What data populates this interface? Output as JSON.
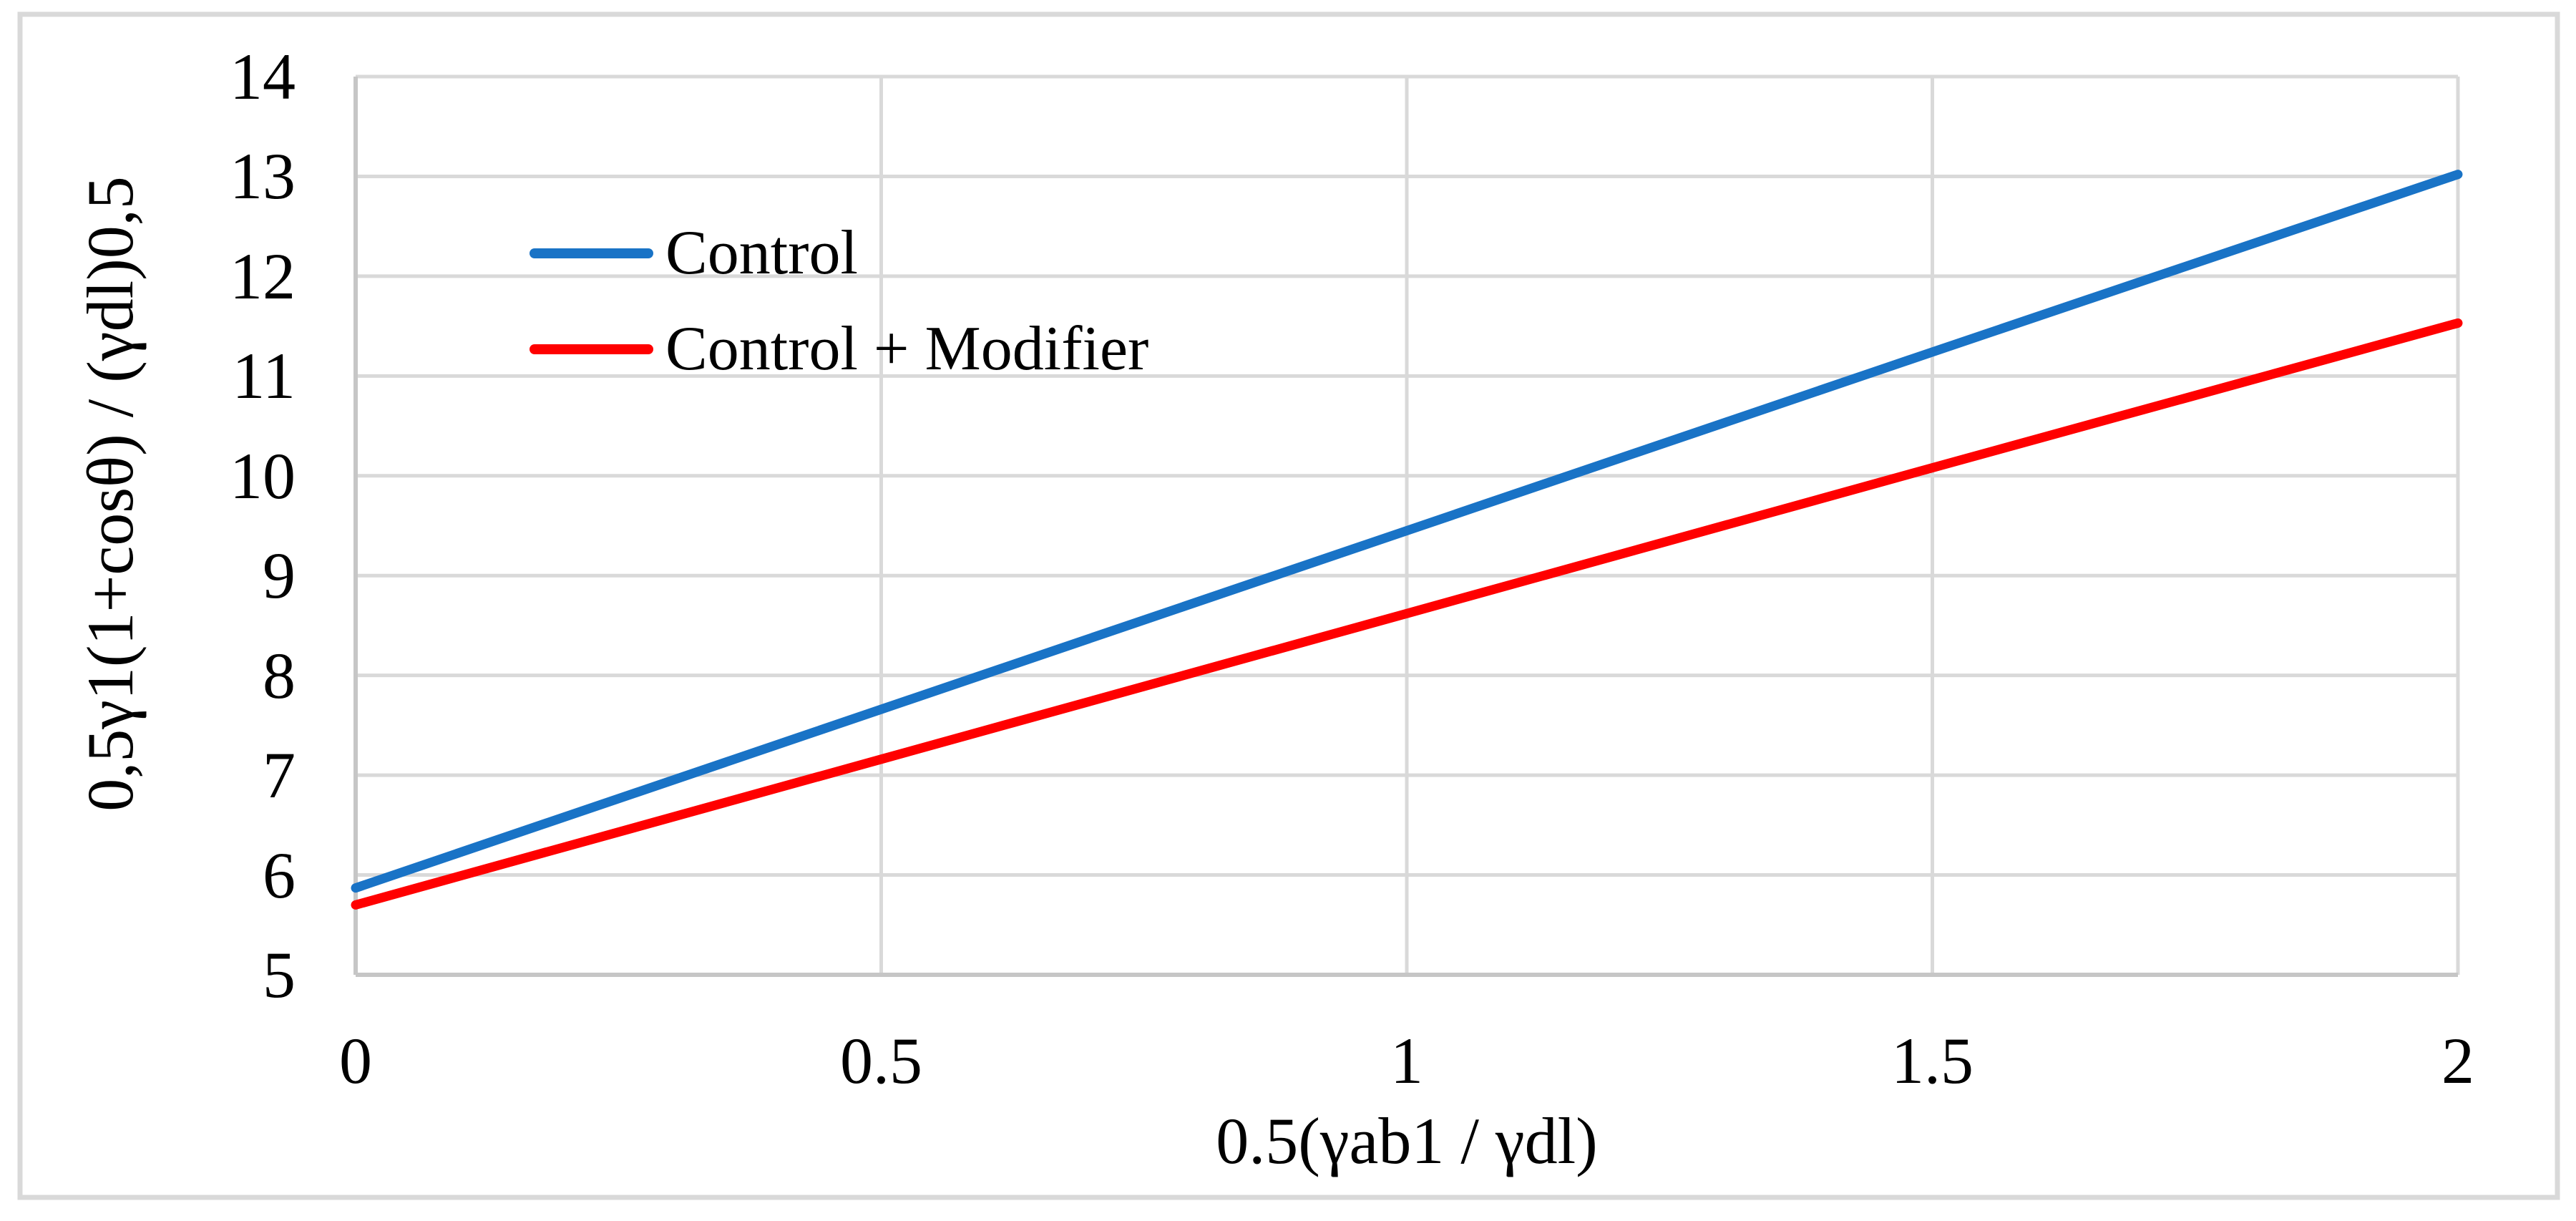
{
  "figure": {
    "background_color": "#FFFFFF",
    "border_color": "#D9D9D9"
  },
  "chart_data": {
    "type": "line",
    "title": "",
    "x": [
      0,
      0.5,
      1,
      1.5,
      2
    ],
    "series": [
      {
        "name": "Control",
        "color": "#1973C6",
        "values": [
          5.87,
          7.66,
          9.45,
          11.24,
          13.02
        ]
      },
      {
        "name": "Control + Modifier",
        "color": "#FF0000",
        "values": [
          5.7,
          7.16,
          8.62,
          10.08,
          11.53
        ]
      }
    ],
    "xlabel": "0.5(γab1 / γdl)",
    "ylabel": "0,5γ1(1+cosθ) / (γdl)0,5",
    "xlim": [
      0,
      2
    ],
    "ylim": [
      5,
      14
    ],
    "x_axis": {
      "ticks": [
        {
          "v": 0,
          "label": "0"
        },
        {
          "v": 0.5,
          "label": "0.5"
        },
        {
          "v": 1,
          "label": "1"
        },
        {
          "v": 1.5,
          "label": "1.5"
        },
        {
          "v": 2,
          "label": "2"
        }
      ]
    },
    "y_axis": {
      "ticks": [
        {
          "v": 14,
          "label": "14"
        },
        {
          "v": 13,
          "label": "13"
        },
        {
          "v": 12,
          "label": "12"
        },
        {
          "v": 11,
          "label": "11"
        },
        {
          "v": 10,
          "label": "10"
        },
        {
          "v": 9,
          "label": "9"
        },
        {
          "v": 8,
          "label": "8"
        },
        {
          "v": 7,
          "label": "7"
        },
        {
          "v": 6,
          "label": "6"
        },
        {
          "v": 5,
          "label": "5"
        }
      ]
    },
    "grid": true,
    "grid_color": "#D9D9D9",
    "axis_line_color": "#C6C6C6",
    "legend_position": "upper-left-inside",
    "line_width": 13
  }
}
